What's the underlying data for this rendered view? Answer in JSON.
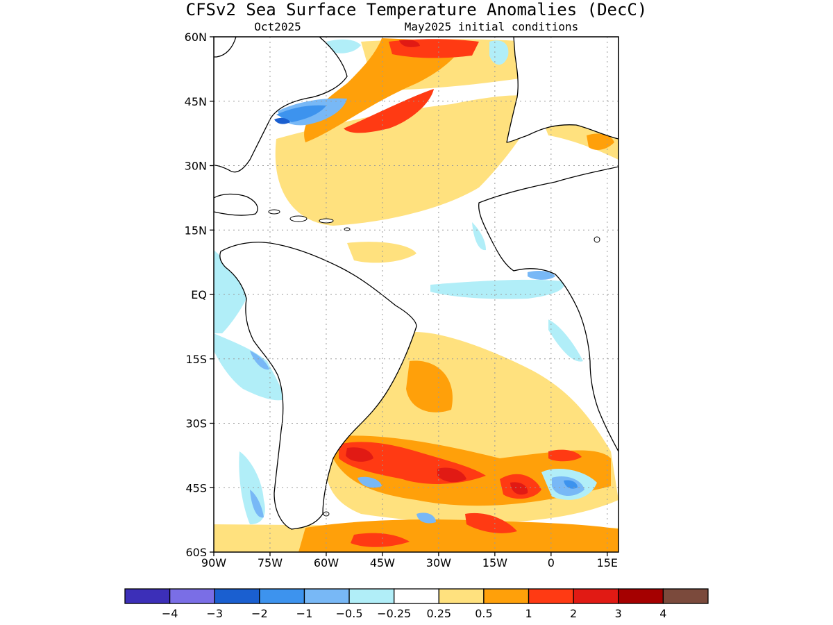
{
  "title": "CFSv2 Sea Surface Temperature Anomalies (DecC)",
  "subtitle_left": "Oct2025",
  "subtitle_right": "May2025 initial conditions",
  "lat_labels": [
    "60N",
    "45N",
    "30N",
    "15N",
    "EQ",
    "15S",
    "30S",
    "45S",
    "60S"
  ],
  "lon_labels": [
    "90W",
    "75W",
    "60W",
    "45W",
    "30W",
    "15W",
    "0",
    "15E"
  ],
  "colorbar": {
    "colors": [
      "#3c2fb8",
      "#7a6ee6",
      "#1a5fd0",
      "#3d93ee",
      "#78b8f6",
      "#b1eef8",
      "#ffffff",
      "#ffe17e",
      "#ffa00a",
      "#ff3a13",
      "#e11a14",
      "#a50000",
      "#7b4a3c"
    ],
    "labels": [
      "−4",
      "−3",
      "−2",
      "−1",
      "−0.5",
      "−0.25",
      "0.25",
      "0.5",
      "1",
      "2",
      "3",
      "4"
    ]
  },
  "map_colors": {
    "ocean": "#ffffff",
    "land": "#ffffff",
    "coast": "#000000",
    "grid": "#9a9a9a",
    "light_blue": "#b1eef8",
    "mid_blue": "#78b8f6",
    "blue": "#3d93ee",
    "dark_blue": "#1a5fd0",
    "light_orange": "#ffe17e",
    "orange": "#ffa00a",
    "red": "#ff3a13",
    "dark_red": "#e11a14"
  }
}
